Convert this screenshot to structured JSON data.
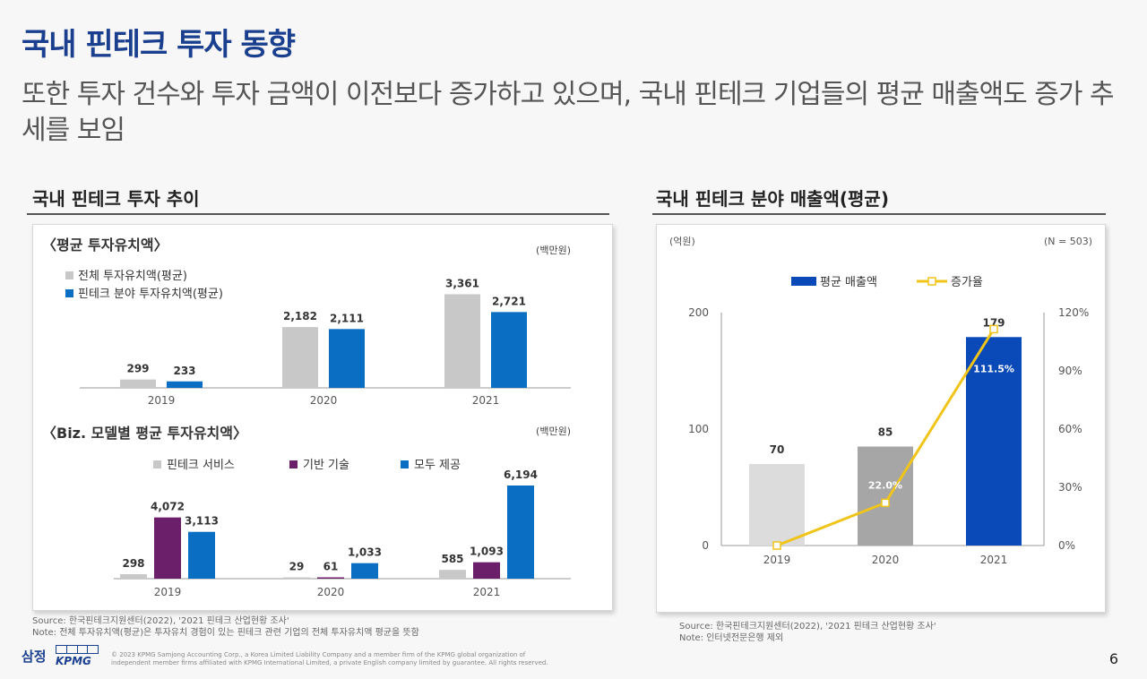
{
  "header": {
    "title": "국내 핀테크 투자 동향",
    "subtitle": "또한 투자 건수와 투자 금액이 이전보다 증가하고 있으며, 국내 핀테크 기업들의 평균 매출액도 증가 추세를 보임"
  },
  "left_section": {
    "title": "국내 핀테크 투자 추이",
    "source_line1": "Source: 한국핀테크지원센터(2022), '2021 핀테크 산업현황 조사'",
    "source_line2": "Note: 전체 투자유치액(평균)은 투자유치 경험이 있는 핀테크 관련 기업의 전체 투자유치액 평균을 뜻함"
  },
  "right_section": {
    "title": "국내 핀테크 분야 매출액(평균)",
    "source_line1": "Source: 한국핀테크지원센터(2022), '2021 핀테크 산업현황 조사'",
    "source_line2": "Note: 인터넷전문은행 제외"
  },
  "footer": {
    "logo_text": "삼정",
    "kpmg_text": "KPMG",
    "copyright_line1": "© 2023 KPMG Samjong Accounting Corp., a Korea Limited Liability Company and a member firm of the KPMG global organization of",
    "copyright_line2": "independent member firms affiliated with KPMG International Limited, a private English company limited by guarantee. All rights reserved.",
    "page_number": "6"
  },
  "colors": {
    "title_blue": "#1b3f8f",
    "gray_bar": "#c8c8c8",
    "blue_bar": "#0a6fc2",
    "purple_bar": "#6b1f6b",
    "light_gray_bar": "#dcdcdc",
    "dark_gray_bar": "#a6a6a6",
    "dark_blue_bar": "#0a4ab8",
    "line_yellow": "#f0c419"
  },
  "chart_data": [
    {
      "type": "bar",
      "title": "〈평균 투자유치액〉",
      "unit": "(백만원)",
      "categories": [
        "2019",
        "2020",
        "2021"
      ],
      "series": [
        {
          "name": "전체 투자유치액(평균)",
          "values": [
            299,
            2182,
            3361
          ],
          "labels": [
            "299",
            "2,182",
            "3,361"
          ],
          "color": "#c8c8c8"
        },
        {
          "name": "핀테크 분야 투자유치액(평균)",
          "values": [
            233,
            2111,
            2721
          ],
          "labels": [
            "233",
            "2,111",
            "2,721"
          ],
          "color": "#0a6fc2"
        }
      ],
      "ylim": [
        0,
        3600
      ],
      "legend": "top-left"
    },
    {
      "type": "bar",
      "title": "〈Biz. 모델별 평균 투자유치액〉",
      "unit": "(백만원)",
      "categories": [
        "2019",
        "2020",
        "2021"
      ],
      "series": [
        {
          "name": "핀테크 서비스",
          "values": [
            298,
            29,
            585
          ],
          "labels": [
            "298",
            "29",
            "585"
          ],
          "color": "#c8c8c8"
        },
        {
          "name": "기반 기술",
          "values": [
            4072,
            61,
            1093
          ],
          "labels": [
            "4,072",
            "61",
            "1,093"
          ],
          "color": "#6b1f6b"
        },
        {
          "name": "모두 제공",
          "values": [
            3113,
            1033,
            6194
          ],
          "labels": [
            "3,113",
            "1,033",
            "6,194"
          ],
          "color": "#0a6fc2"
        }
      ],
      "ylim": [
        0,
        6600
      ],
      "legend": "top-center"
    },
    {
      "type": "bar",
      "unit_left": "(억원)",
      "unit_right": "(N = 503)",
      "categories": [
        "2019",
        "2020",
        "2021"
      ],
      "series": [
        {
          "name": "평균 매출액",
          "values": [
            70,
            85,
            179
          ],
          "labels": [
            "70",
            "85",
            "179"
          ],
          "colors": [
            "#dcdcdc",
            "#a6a6a6",
            "#0a4ab8"
          ]
        },
        {
          "name": "증가율",
          "type": "line",
          "axis": "right",
          "values": [
            0,
            22.0,
            111.5
          ],
          "labels": [
            "",
            "22.0%",
            "111.5%"
          ],
          "color": "#f0c419"
        }
      ],
      "y_left": {
        "ticks": [
          "0",
          "100",
          "200"
        ],
        "range": [
          0,
          200
        ]
      },
      "y_right": {
        "ticks": [
          "0%",
          "30%",
          "60%",
          "90%",
          "120%"
        ],
        "range": [
          0,
          120
        ]
      },
      "legend": "top-center"
    }
  ]
}
